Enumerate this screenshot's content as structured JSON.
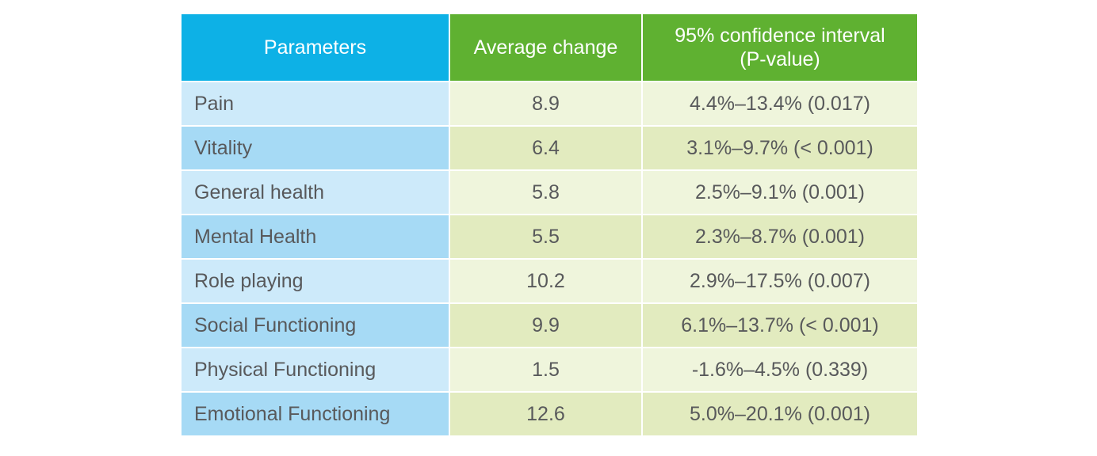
{
  "table": {
    "headers": {
      "parameters": "Parameters",
      "average_change": "Average change",
      "ci_line1": "95% confidence interval",
      "ci_line2": "(P-value)"
    },
    "rows": [
      {
        "parameter": "Pain",
        "average_change": "8.9",
        "ci": "4.4%–13.4% (0.017)"
      },
      {
        "parameter": "Vitality",
        "average_change": "6.4",
        "ci": "3.1%–9.7% (< 0.001)"
      },
      {
        "parameter": "General health",
        "average_change": "5.8",
        "ci": "2.5%–9.1% (0.001)"
      },
      {
        "parameter": "Mental Health",
        "average_change": "5.5",
        "ci": "2.3%–8.7% (0.001)"
      },
      {
        "parameter": "Role playing",
        "average_change": "10.2",
        "ci": "2.9%–17.5% (0.007)"
      },
      {
        "parameter": "Social Functioning",
        "average_change": "9.9",
        "ci": "6.1%–13.7% (< 0.001)"
      },
      {
        "parameter": "Physical Functioning",
        "average_change": "1.5",
        "ci": "-1.6%–4.5% (0.339)"
      },
      {
        "parameter": "Emotional Functioning",
        "average_change": "12.6",
        "ci": "5.0%–20.1% (0.001)"
      }
    ]
  },
  "colors": {
    "header_parameters": "#0db1e6",
    "header_green": "#5fb131",
    "param_light": "#cdeafa",
    "param_dark": "#a6daf5",
    "value_light": "#eff5dc",
    "value_dark": "#e2ebbf",
    "text": "#58595b"
  }
}
